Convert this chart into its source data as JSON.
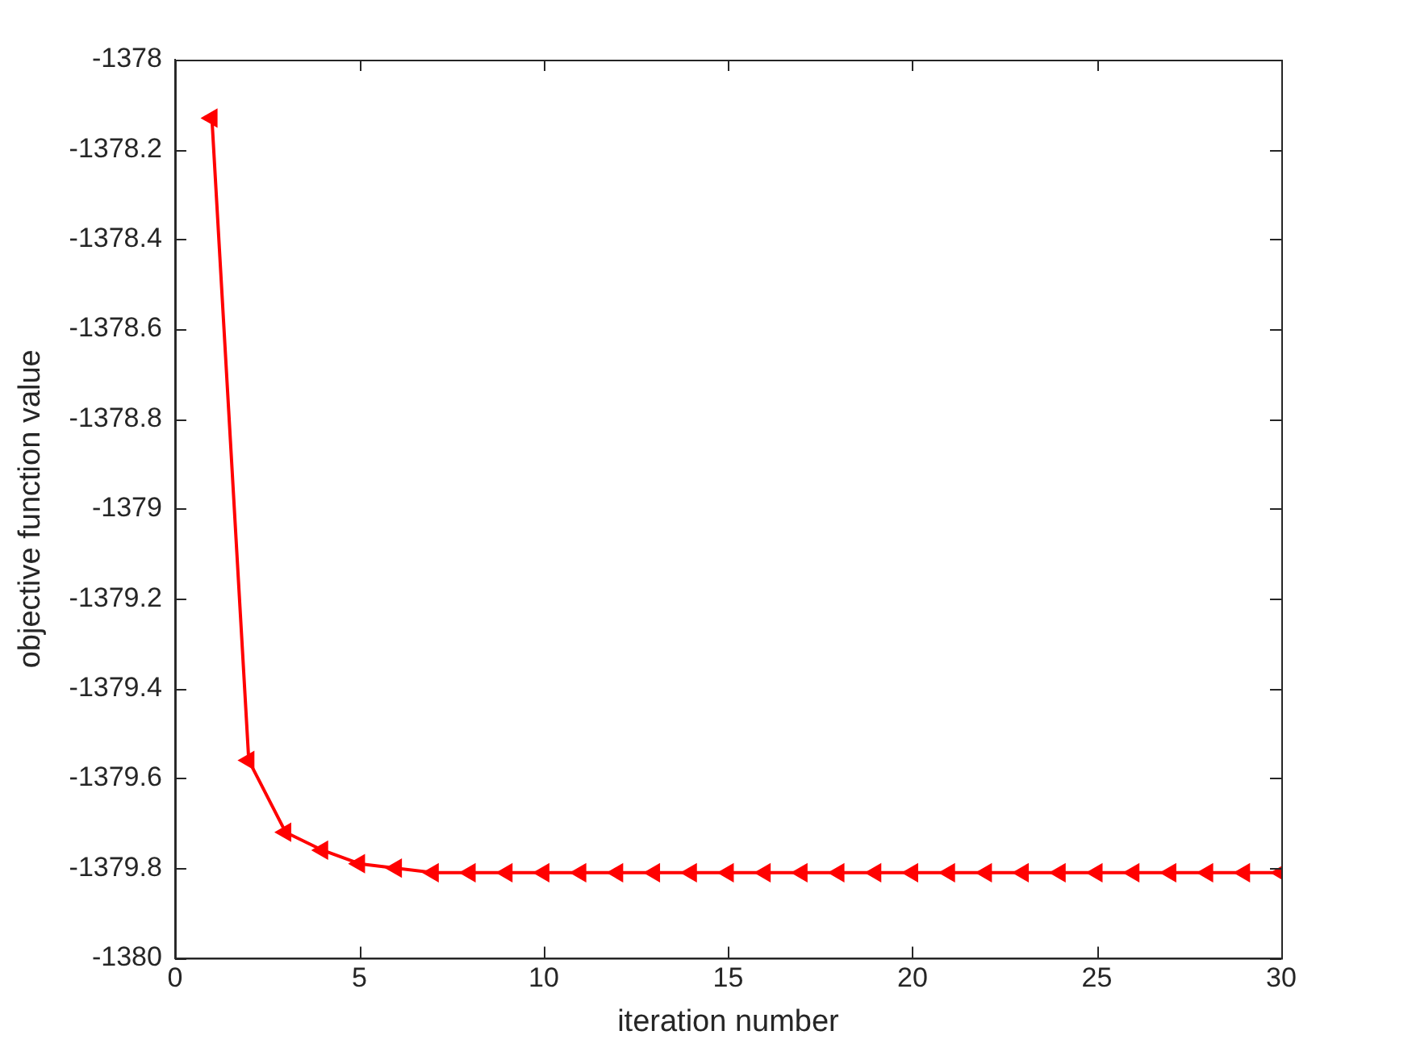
{
  "chart_data": {
    "type": "line",
    "xlabel": "iteration number",
    "ylabel": "objective function value",
    "x": [
      1,
      2,
      3,
      4,
      5,
      6,
      7,
      8,
      9,
      10,
      11,
      12,
      13,
      14,
      15,
      16,
      17,
      18,
      19,
      20,
      21,
      22,
      23,
      24,
      25,
      26,
      27,
      28,
      29,
      30
    ],
    "series": [
      {
        "color": "#ff0000",
        "values": [
          -1378.13,
          -1379.56,
          -1379.72,
          -1379.76,
          -1379.79,
          -1379.8,
          -1379.81,
          -1379.81,
          -1379.81,
          -1379.81,
          -1379.81,
          -1379.81,
          -1379.81,
          -1379.81,
          -1379.81,
          -1379.81,
          -1379.81,
          -1379.81,
          -1379.81,
          -1379.81,
          -1379.81,
          -1379.81,
          -1379.81,
          -1379.81,
          -1379.81,
          -1379.81,
          -1379.81,
          -1379.81,
          -1379.81,
          -1379.81
        ]
      }
    ],
    "xlim": [
      0,
      30
    ],
    "xticks": [
      0,
      5,
      10,
      15,
      20,
      25,
      30
    ],
    "ylim": [
      -1380,
      -1378
    ],
    "yticks": [
      -1380,
      -1379.8,
      -1379.6,
      -1379.4,
      -1379.2,
      -1379,
      -1378.8,
      -1378.6,
      -1378.4,
      -1378.2,
      -1378
    ],
    "grid": false,
    "legend": false,
    "marker": "triangle",
    "line_style": "solid"
  }
}
